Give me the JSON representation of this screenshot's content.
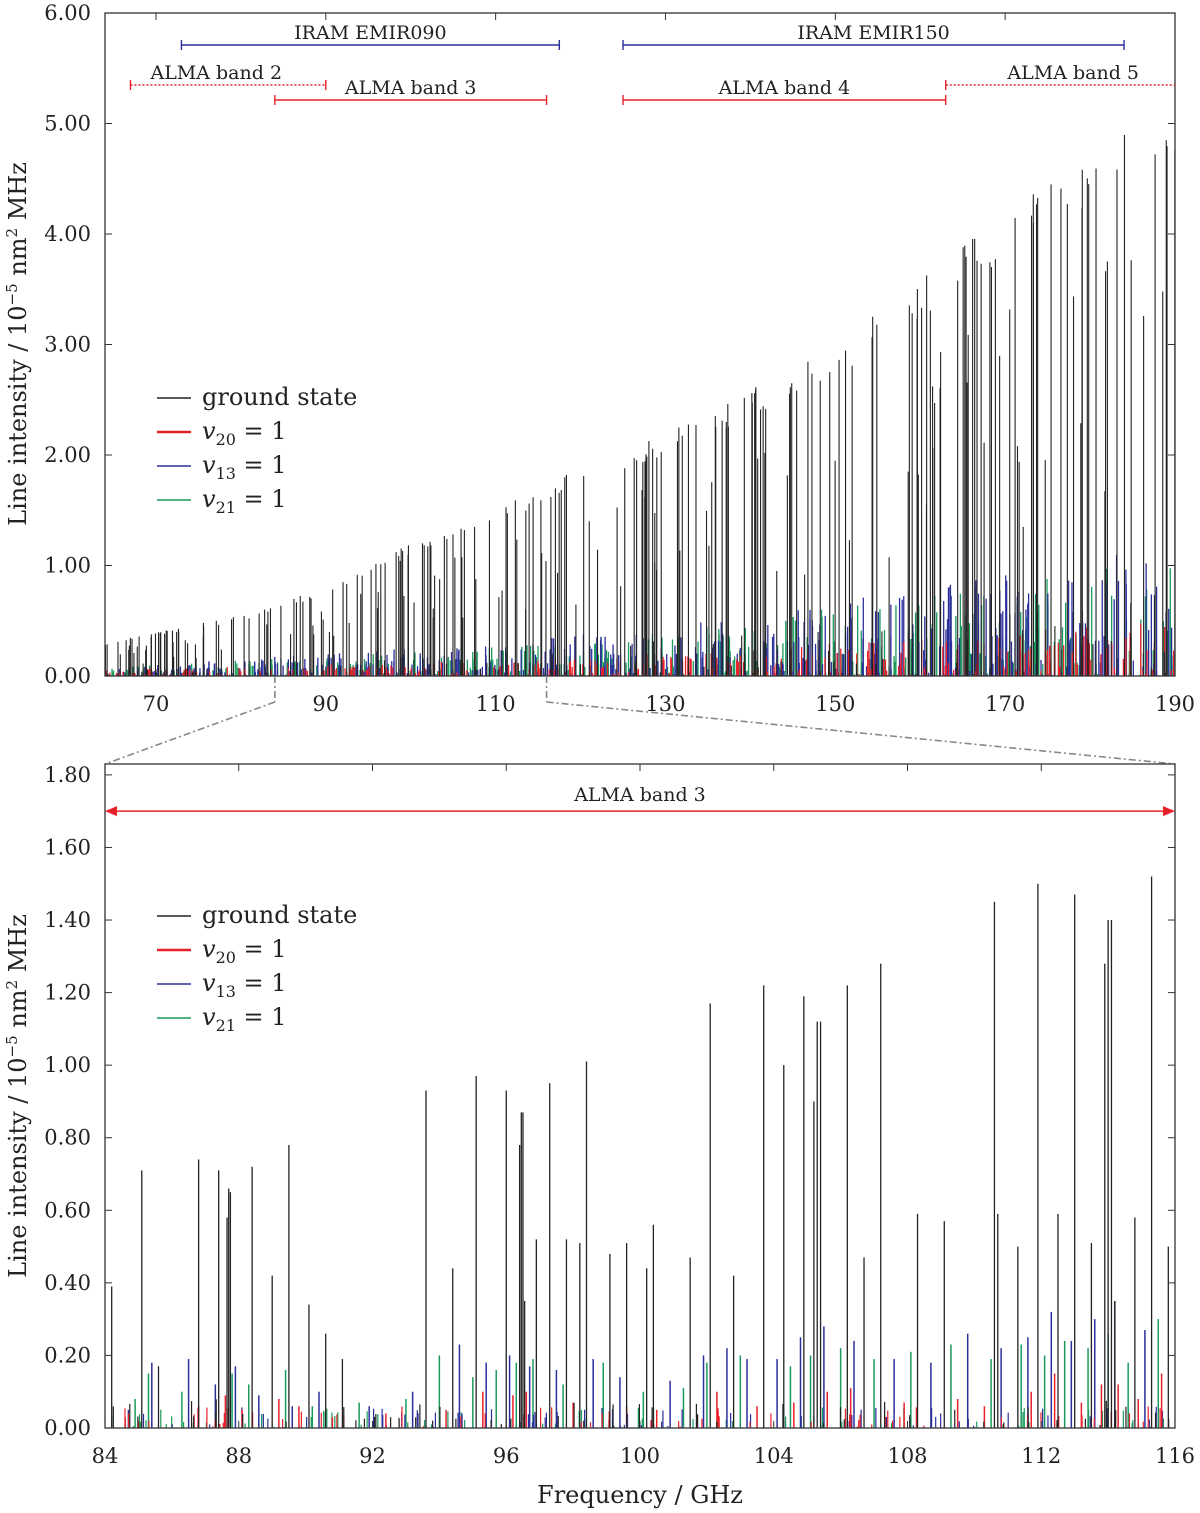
{
  "chart_data": [
    {
      "type": "line",
      "panel": "overview",
      "xlabel": "",
      "ylabel": "Line intensity / 10⁻⁵ nm² MHz",
      "ylabel_parts": {
        "base": "Line intensity / 10",
        "exp1": "−5",
        "mid": " nm",
        "exp2": "2",
        "unit": " MHz"
      },
      "xlim": [
        64,
        190
      ],
      "ylim": [
        0,
        6
      ],
      "xticks": [
        70,
        90,
        110,
        130,
        150,
        170,
        190
      ],
      "xtick_labels": [
        "70",
        "90",
        "110",
        "130",
        "150",
        "170",
        "190"
      ],
      "yticks": [
        0,
        1,
        2,
        3,
        4,
        5,
        6
      ],
      "ytick_labels": [
        "0.00",
        "1.00",
        "2.00",
        "3.00",
        "4.00",
        "5.00",
        "6.00"
      ],
      "legend": {
        "placement": "middle-left",
        "entries": [
          {
            "sym": "",
            "sub": "",
            "rest": "ground state",
            "color": "#222222"
          },
          {
            "sym": "v",
            "sub": "20",
            "rest": " = 1",
            "color": "#e8202a"
          },
          {
            "sym": "v",
            "sub": "13",
            "rest": " = 1",
            "color": "#2b2f9a"
          },
          {
            "sym": "v",
            "sub": "21",
            "rest": " = 1",
            "color": "#1a9a5c"
          }
        ]
      },
      "bands": [
        {
          "label": "IRAM EMIR090",
          "start": 73,
          "end": 117.5,
          "color": "#2b2f9a",
          "style": "solid",
          "level": 0,
          "label_pos": "above"
        },
        {
          "label": "IRAM EMIR150",
          "start": 125,
          "end": 184,
          "color": "#2b2f9a",
          "style": "solid",
          "level": 0,
          "label_pos": "above"
        },
        {
          "label": "ALMA band 2",
          "start": 67,
          "end": 90,
          "color": "#e8202a",
          "style": "dotted",
          "level": 1,
          "label_pos": "above"
        },
        {
          "label": "ALMA band 3",
          "start": 84,
          "end": 116,
          "color": "#e8202a",
          "style": "solid",
          "level": 2,
          "label_pos": "above"
        },
        {
          "label": "ALMA band 4",
          "start": 125,
          "end": 163,
          "color": "#e8202a",
          "style": "solid",
          "level": 2,
          "label_pos": "above"
        },
        {
          "label": "ALMA band 5",
          "start": 163,
          "end": 190,
          "color": "#e8202a",
          "style": "dotted",
          "level": 1,
          "label_pos": "above"
        }
      ],
      "zoom_range": [
        84,
        116
      ],
      "series_summary": [
        {
          "name": "ground state",
          "envelope": [
            [
              64,
              0.3
            ],
            [
              80,
              0.55
            ],
            [
              90,
              0.8
            ],
            [
              100,
              1.2
            ],
            [
              110,
              1.5
            ],
            [
              120,
              1.9
            ],
            [
              130,
              2.2
            ],
            [
              140,
              2.6
            ],
            [
              150,
              3.0
            ],
            [
              160,
              3.6
            ],
            [
              170,
              4.2
            ],
            [
              180,
              4.7
            ],
            [
              187,
              5.1
            ],
            [
              190,
              5.1
            ]
          ]
        },
        {
          "name": "v20 = 1",
          "envelope": [
            [
              64,
              0.06
            ],
            [
              100,
              0.12
            ],
            [
              130,
              0.2
            ],
            [
              160,
              0.35
            ],
            [
              190,
              0.5
            ]
          ]
        },
        {
          "name": "v13 = 1",
          "envelope": [
            [
              64,
              0.08
            ],
            [
              100,
              0.25
            ],
            [
              130,
              0.45
            ],
            [
              160,
              0.8
            ],
            [
              190,
              1.2
            ]
          ]
        },
        {
          "name": "v21 = 1",
          "envelope": [
            [
              64,
              0.08
            ],
            [
              100,
              0.22
            ],
            [
              130,
              0.4
            ],
            [
              160,
              0.75
            ],
            [
              190,
              1.1
            ]
          ]
        }
      ]
    },
    {
      "type": "line",
      "panel": "zoom",
      "xlabel": "Frequency / GHz",
      "ylabel": "Line intensity / 10⁻⁵ nm² MHz",
      "ylabel_parts": {
        "base": "Line intensity / 10",
        "exp1": "−5",
        "mid": " nm",
        "exp2": "2",
        "unit": " MHz"
      },
      "xlim": [
        84,
        116
      ],
      "ylim": [
        0,
        1.83
      ],
      "xticks": [
        84,
        88,
        92,
        96,
        100,
        104,
        108,
        112,
        116
      ],
      "xtick_labels": [
        "84",
        "88",
        "92",
        "96",
        "100",
        "104",
        "108",
        "112",
        "116"
      ],
      "yticks": [
        0,
        0.2,
        0.4,
        0.6,
        0.8,
        1.0,
        1.2,
        1.4,
        1.6,
        1.8
      ],
      "ytick_labels": [
        "0.00",
        "0.20",
        "0.40",
        "0.60",
        "0.80",
        "1.00",
        "1.20",
        "1.40",
        "1.60",
        "1.80"
      ],
      "legend": {
        "placement": "upper-left",
        "entries": [
          {
            "sym": "",
            "sub": "",
            "rest": "ground state",
            "color": "#222222"
          },
          {
            "sym": "v",
            "sub": "20",
            "rest": " = 1",
            "color": "#e8202a"
          },
          {
            "sym": "v",
            "sub": "13",
            "rest": " = 1",
            "color": "#2b2f9a"
          },
          {
            "sym": "v",
            "sub": "21",
            "rest": " = 1",
            "color": "#1a9a5c"
          }
        ]
      },
      "band": {
        "label": "ALMA band 3",
        "start": 84,
        "end": 116,
        "color": "#e8202a",
        "value": 1.7
      },
      "series": [
        {
          "name": "ground state",
          "color": "#222222",
          "x": [
            84.2,
            85.1,
            85.6,
            86.8,
            87.4,
            87.65,
            87.7,
            87.75,
            88.4,
            89.0,
            89.5,
            90.1,
            90.6,
            91.1,
            93.6,
            94.4,
            95.1,
            96.0,
            96.4,
            96.45,
            96.5,
            96.55,
            96.9,
            97.3,
            97.8,
            98.2,
            98.4,
            99.1,
            99.6,
            100.2,
            100.4,
            101.5,
            102.1,
            102.8,
            103.7,
            104.3,
            104.9,
            105.2,
            105.3,
            105.4,
            106.2,
            106.7,
            107.2,
            108.3,
            109.1,
            110.6,
            110.7,
            111.3,
            111.9,
            112.5,
            113.0,
            113.5,
            113.9,
            114.0,
            114.1,
            114.2,
            114.8,
            115.3,
            115.8
          ],
          "values": [
            0.39,
            0.71,
            0.17,
            0.74,
            0.71,
            0.58,
            0.66,
            0.65,
            0.72,
            0.42,
            0.78,
            0.34,
            0.26,
            0.19,
            0.93,
            0.44,
            0.97,
            0.93,
            0.78,
            0.87,
            0.87,
            0.35,
            0.52,
            0.95,
            0.52,
            0.51,
            1.01,
            0.48,
            0.51,
            0.44,
            0.56,
            0.47,
            1.17,
            0.42,
            1.22,
            1.0,
            1.19,
            0.9,
            1.12,
            1.12,
            1.22,
            0.47,
            1.28,
            0.59,
            0.57,
            1.45,
            0.59,
            0.5,
            1.5,
            0.59,
            1.47,
            0.51,
            1.28,
            1.4,
            1.4,
            0.35,
            0.58,
            1.52,
            0.5
          ]
        },
        {
          "name": "v20 = 1",
          "color": "#e8202a",
          "x": [
            85.0,
            86.8,
            87.6,
            88.1,
            89.2,
            89.8,
            90.8,
            92.4,
            94.2,
            95.3,
            96.2,
            96.6,
            98.0,
            99.6,
            100.5,
            102.3,
            103.5,
            104.6,
            105.6,
            106.3,
            107.9,
            109.5,
            110.3,
            111.7,
            112.4,
            113.2,
            113.8,
            114.3,
            114.9,
            115.6
          ],
          "values": [
            0.02,
            0.06,
            0.09,
            0.05,
            0.08,
            0.06,
            0.03,
            0.04,
            0.05,
            0.1,
            0.09,
            0.1,
            0.07,
            0.06,
            0.05,
            0.1,
            0.06,
            0.07,
            0.1,
            0.11,
            0.07,
            0.08,
            0.06,
            0.1,
            0.15,
            0.07,
            0.12,
            0.12,
            0.08,
            0.15
          ]
        },
        {
          "name": "v13 = 1",
          "color": "#2b2f9a",
          "x": [
            84.7,
            85.4,
            86.5,
            87.3,
            87.9,
            88.6,
            89.6,
            90.4,
            91.9,
            93.2,
            94.6,
            95.4,
            96.1,
            96.7,
            97.5,
            98.6,
            99.4,
            100.9,
            101.9,
            102.6,
            103.2,
            104.1,
            104.8,
            105.5,
            106.4,
            107.6,
            108.7,
            109.8,
            110.8,
            111.6,
            112.3,
            112.9,
            113.6,
            114.2,
            115.1
          ],
          "values": [
            0.05,
            0.18,
            0.19,
            0.12,
            0.17,
            0.09,
            0.06,
            0.1,
            0.06,
            0.1,
            0.23,
            0.18,
            0.2,
            0.17,
            0.16,
            0.19,
            0.14,
            0.13,
            0.2,
            0.22,
            0.19,
            0.19,
            0.25,
            0.28,
            0.24,
            0.19,
            0.18,
            0.26,
            0.22,
            0.25,
            0.32,
            0.24,
            0.3,
            0.35,
            0.27
          ]
        },
        {
          "name": "v21 = 1",
          "color": "#1a9a5c",
          "x": [
            84.9,
            85.3,
            86.3,
            87.8,
            88.3,
            89.4,
            90.2,
            91.6,
            93.0,
            94.0,
            95.0,
            95.7,
            96.3,
            96.8,
            97.7,
            98.9,
            100.1,
            101.3,
            102.0,
            103.0,
            104.5,
            105.1,
            106.0,
            107.0,
            108.1,
            109.3,
            110.5,
            111.4,
            112.1,
            112.7,
            113.4,
            114.0,
            114.6,
            115.5
          ],
          "values": [
            0.08,
            0.15,
            0.1,
            0.15,
            0.12,
            0.16,
            0.06,
            0.07,
            0.08,
            0.2,
            0.14,
            0.16,
            0.18,
            0.19,
            0.12,
            0.18,
            0.1,
            0.11,
            0.18,
            0.2,
            0.17,
            0.2,
            0.22,
            0.19,
            0.21,
            0.23,
            0.19,
            0.23,
            0.2,
            0.24,
            0.22,
            0.26,
            0.18,
            0.3
          ]
        }
      ]
    }
  ]
}
